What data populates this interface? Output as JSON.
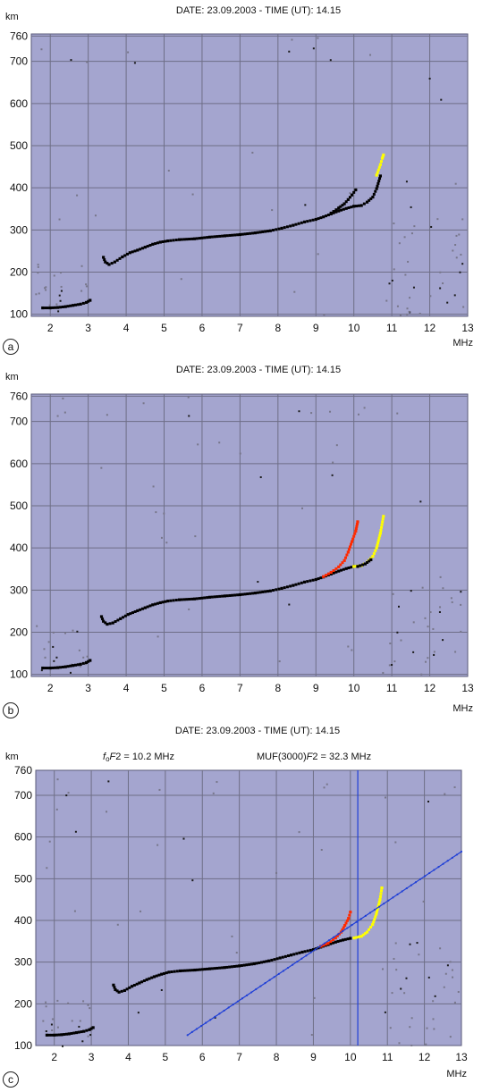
{
  "chart_data": [
    {
      "panel_label": "a",
      "type": "scatter",
      "title": "DATE: 23.09.2003 - TIME (UT): 14.15",
      "ylabel": "km",
      "xlabel": "MHz",
      "xlim": [
        1.5,
        13
      ],
      "ylim": [
        95,
        765
      ],
      "xticks": [
        2,
        3,
        4,
        5,
        6,
        7,
        8,
        9,
        10,
        11,
        12,
        13
      ],
      "yticks": [
        100,
        200,
        300,
        400,
        500,
        600,
        700,
        760
      ],
      "grid": true,
      "background_color": "#a4a5cf",
      "series": [
        {
          "color": "#000000",
          "x": [
            1.8,
            2.0,
            2.2,
            2.4,
            2.6,
            2.8,
            2.95,
            3.05
          ],
          "y": [
            115,
            115,
            116,
            118,
            121,
            124,
            128,
            133
          ]
        },
        {
          "color": "#000000",
          "x": [
            3.4,
            3.45,
            3.55,
            3.7,
            3.9,
            4.1,
            4.3,
            4.5,
            4.7,
            4.9,
            5.1,
            5.4,
            5.8,
            6.2,
            6.6,
            7.0,
            7.4,
            7.8,
            8.1,
            8.4,
            8.7,
            9.0,
            9.2,
            9.4,
            9.6,
            9.8,
            10.0
          ],
          "y": [
            235,
            224,
            218,
            224,
            236,
            246,
            252,
            259,
            266,
            271,
            274,
            277,
            279,
            283,
            286,
            289,
            293,
            298,
            304,
            311,
            319,
            325,
            331,
            338,
            345,
            351,
            356
          ]
        },
        {
          "color": "#000000",
          "x": [
            10.0,
            10.2,
            10.35,
            10.5,
            10.6,
            10.7
          ],
          "y": [
            356,
            358,
            366,
            378,
            398,
            428
          ]
        },
        {
          "color": "#000000",
          "x": [
            9.4,
            9.6,
            9.75,
            9.85,
            9.95,
            10.05
          ],
          "y": [
            340,
            352,
            362,
            372,
            383,
            395
          ]
        },
        {
          "color": "#ffff00",
          "x": [
            10.6,
            10.7,
            10.75,
            10.78
          ],
          "y": [
            430,
            455,
            470,
            478
          ]
        }
      ]
    },
    {
      "panel_label": "b",
      "type": "scatter",
      "title": "DATE: 23.09.2003 - TIME (UT): 14.15",
      "ylabel": "km",
      "xlabel": "MHz",
      "xlim": [
        1.5,
        13
      ],
      "ylim": [
        95,
        765
      ],
      "xticks": [
        2,
        3,
        4,
        5,
        6,
        7,
        8,
        9,
        10,
        11,
        12,
        13
      ],
      "yticks": [
        100,
        200,
        300,
        400,
        500,
        600,
        700,
        760
      ],
      "grid": true,
      "background_color": "#a4a5cf",
      "series": [
        {
          "color": "#000000",
          "x": [
            1.8,
            2.0,
            2.2,
            2.4,
            2.6,
            2.8,
            2.95,
            3.05
          ],
          "y": [
            115,
            115,
            116,
            118,
            121,
            124,
            128,
            133
          ]
        },
        {
          "color": "#000000",
          "x": [
            3.35,
            3.4,
            3.5,
            3.65,
            3.85,
            4.05,
            4.3,
            4.5,
            4.7,
            4.9,
            5.1,
            5.4,
            5.8,
            6.2,
            6.6,
            7.0,
            7.4,
            7.8,
            8.1,
            8.4,
            8.7,
            9.0,
            9.2,
            9.4,
            9.6,
            9.8,
            10.0
          ],
          "y": [
            237,
            226,
            219,
            222,
            232,
            242,
            251,
            258,
            265,
            270,
            274,
            277,
            279,
            283,
            286,
            289,
            293,
            298,
            304,
            311,
            319,
            325,
            331,
            338,
            345,
            351,
            356
          ]
        },
        {
          "color": "#ff2a00",
          "x": [
            9.2,
            9.4,
            9.6,
            9.75,
            9.85,
            9.95,
            10.05,
            10.1
          ],
          "y": [
            332,
            342,
            355,
            370,
            390,
            415,
            440,
            462
          ]
        },
        {
          "color": "#ffff00",
          "x": [
            10.0,
            10.2,
            10.35,
            10.5,
            10.6,
            10.7,
            10.78
          ],
          "y": [
            356,
            358,
            366,
            380,
            400,
            435,
            475
          ]
        },
        {
          "color": "#000000",
          "x": [
            10.1,
            10.3,
            10.45
          ],
          "y": [
            356,
            362,
            372
          ]
        }
      ]
    },
    {
      "panel_label": "c",
      "type": "scatter",
      "title": "DATE: 23.09.2003 - TIME (UT): 14.15",
      "annotations": {
        "fof2_prefix": "f",
        "fof2_sub": "o",
        "fof2_italic": "F",
        "fof2_rest": "2 = 10.2 MHz",
        "muf_prefix": "MUF(3000)",
        "muf_italic": "F",
        "muf_rest": "2 = 32.3 MHz"
      },
      "ylabel": "km",
      "xlabel": "MHz",
      "xlim": [
        1.5,
        13
      ],
      "ylim": [
        100,
        760
      ],
      "xticks": [
        2,
        3,
        4,
        5,
        6,
        7,
        8,
        9,
        10,
        11,
        12,
        13
      ],
      "yticks": [
        100,
        200,
        300,
        400,
        500,
        600,
        700,
        760
      ],
      "grid": true,
      "background_color": "#a4a5cf",
      "series": [
        {
          "color": "#000000",
          "x": [
            1.8,
            2.0,
            2.2,
            2.4,
            2.6,
            2.8,
            2.95,
            3.05
          ],
          "y": [
            125,
            125,
            126,
            128,
            131,
            134,
            138,
            143
          ]
        },
        {
          "color": "#000000",
          "x": [
            3.6,
            3.65,
            3.75,
            3.9,
            4.1,
            4.3,
            4.5,
            4.7,
            4.9,
            5.1,
            5.4,
            5.8,
            6.2,
            6.6,
            7.0,
            7.4,
            7.8,
            8.1,
            8.4,
            8.7,
            9.0,
            9.2,
            9.4,
            9.6,
            9.8,
            10.0
          ],
          "y": [
            245,
            234,
            228,
            232,
            242,
            250,
            258,
            265,
            271,
            276,
            279,
            281,
            284,
            287,
            291,
            296,
            303,
            310,
            317,
            324,
            330,
            336,
            342,
            348,
            353,
            357
          ]
        },
        {
          "color": "#ff2a00",
          "x": [
            9.2,
            9.4,
            9.6,
            9.75,
            9.85,
            9.95,
            10.0
          ],
          "y": [
            338,
            345,
            358,
            372,
            388,
            405,
            420
          ]
        },
        {
          "color": "#ffff00",
          "x": [
            10.1,
            10.3,
            10.45,
            10.6,
            10.7,
            10.8,
            10.85
          ],
          "y": [
            358,
            362,
            372,
            390,
            415,
            450,
            478
          ]
        },
        {
          "color": "#1f3fd6",
          "x": [
            5.6,
            13.0
          ],
          "y": [
            125,
            565
          ]
        }
      ],
      "fof2_line_x": 10.2
    }
  ]
}
